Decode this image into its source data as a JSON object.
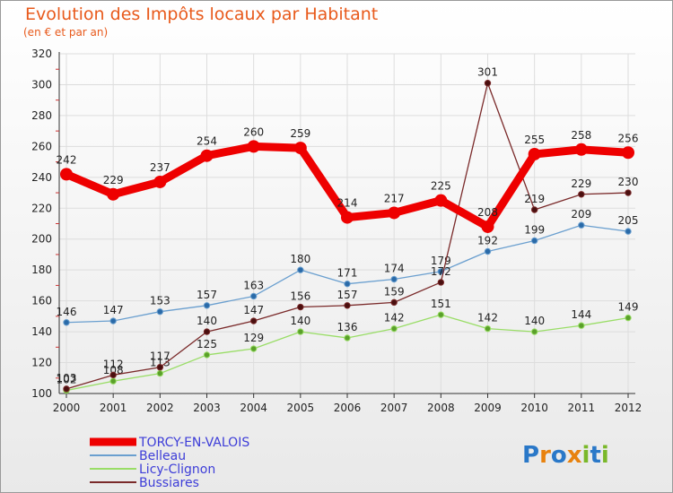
{
  "chart_data": {
    "type": "line",
    "title": "Evolution des Impôts locaux par Habitant",
    "subtitle": "(en € et par an)",
    "categories": [
      "2000",
      "2001",
      "2002",
      "2003",
      "2004",
      "2005",
      "2006",
      "2007",
      "2008",
      "2009",
      "2010",
      "2011",
      "2012"
    ],
    "ylim": [
      100,
      320
    ],
    "yticks": [
      100,
      120,
      140,
      160,
      180,
      200,
      220,
      240,
      260,
      280,
      300,
      320
    ],
    "grid": true,
    "legend_position": "bottom-left",
    "series": [
      {
        "name": "TORCY-EN-VALOIS",
        "color": "#ee0000",
        "values": [
          242,
          229,
          237,
          254,
          260,
          259,
          214,
          217,
          225,
          208,
          255,
          258,
          256
        ]
      },
      {
        "name": "Belleau",
        "color": "#6a9fcf",
        "values": [
          146,
          147,
          153,
          157,
          163,
          180,
          171,
          174,
          179,
          192,
          199,
          209,
          205
        ]
      },
      {
        "name": "Licy-Clignon",
        "color": "#99dd66",
        "values": [
          102,
          108,
          113,
          125,
          129,
          140,
          136,
          142,
          151,
          142,
          140,
          144,
          149
        ]
      },
      {
        "name": "Bussiares",
        "color": "#7a2a2a",
        "values": [
          103,
          112,
          117,
          140,
          147,
          156,
          157,
          159,
          172,
          301,
          219,
          229,
          230
        ]
      }
    ]
  },
  "legend_text_color": "#3d3dd8",
  "logo": {
    "text": "Proxiti",
    "letters": [
      "P",
      "r",
      "o",
      "x",
      "i",
      "t",
      "i"
    ],
    "colors": [
      "#2a78c8",
      "#e8820e",
      "#2a78c8",
      "#e8820e",
      "#7ab82a",
      "#2a78c8",
      "#7ab82a"
    ]
  }
}
